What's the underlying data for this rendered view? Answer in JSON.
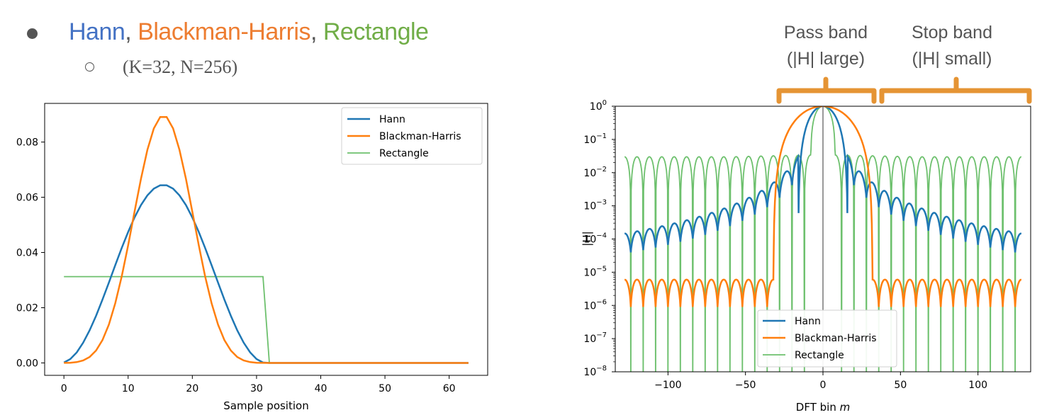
{
  "heading": {
    "bullet_icon": "filled-circle-bullet",
    "parts": [
      {
        "text": "Hann",
        "color": "#4472c4"
      },
      {
        "text": ", ",
        "color": "#555555"
      },
      {
        "text": "Blackman-Harris",
        "color": "#ed7d31"
      },
      {
        "text": ", ",
        "color": "#555555"
      },
      {
        "text": "Rectangle",
        "color": "#70ad47"
      }
    ],
    "params": "(K=32, N=256)",
    "sub_bullet_icon": "hollow-circle-bullet"
  },
  "annotations": {
    "pass_band": {
      "line1": "Pass band",
      "line2": "(|H| large)"
    },
    "stop_band": {
      "line1": "Stop band",
      "line2": "(|H| small)"
    },
    "bracket_color": "#e59434"
  },
  "chart_data": [
    {
      "type": "line",
      "xlabel": "Sample position",
      "ylabel": "",
      "xlim": [
        -3,
        66
      ],
      "ylim": [
        -0.0045,
        0.094
      ],
      "xticks": [
        0,
        10,
        20,
        30,
        40,
        50,
        60
      ],
      "yticks": [
        0.0,
        0.02,
        0.04,
        0.06,
        0.08
      ],
      "ytick_labels": [
        "0.00",
        "0.02",
        "0.04",
        "0.06",
        "0.08"
      ],
      "legend_position": "top-right",
      "window_length": 32,
      "x_end": 63,
      "series": [
        {
          "name": "Hann",
          "color": "#1f77b4",
          "peak": 0.0645,
          "peak_x": 15.5
        },
        {
          "name": "Blackman-Harris",
          "color": "#ff7f0e",
          "peak": 0.0896,
          "peak_x": 15.5
        },
        {
          "name": "Rectangle",
          "color": "#6dc06d",
          "level": 0.03125
        }
      ]
    },
    {
      "type": "line",
      "xlabel": "DFT bin m",
      "ylabel": "|H|",
      "yscale": "log",
      "xlim": [
        -134,
        134
      ],
      "ylim": [
        1e-08,
        1
      ],
      "xticks": [
        -100,
        -50,
        0,
        50,
        100
      ],
      "xtick_labels": [
        "−100",
        "−50",
        "0",
        "50",
        "100"
      ],
      "yticks_exponents": [
        0,
        -1,
        -2,
        -3,
        -4,
        -5,
        -6,
        -7,
        -8
      ],
      "legend_position": "bottom-center",
      "center_line_color": "#999999",
      "series": [
        {
          "name": "Hann",
          "color": "#1f77b4",
          "stop_band_level_at_edge": 3e-05,
          "near_main_lobe_level": 0.03
        },
        {
          "name": "Blackman-Harris",
          "color": "#ff7f0e",
          "stop_band_level": 6e-06
        },
        {
          "name": "Rectangle",
          "color": "#6dc06d",
          "sidelobe_level": 0.03
        }
      ]
    }
  ]
}
